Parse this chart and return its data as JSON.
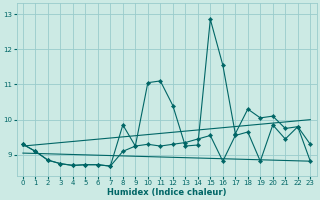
{
  "xlabel": "Humidex (Indice chaleur)",
  "background_color": "#cceae4",
  "grid_color": "#99cccc",
  "line_color": "#006666",
  "xlim": [
    -0.5,
    23.5
  ],
  "ylim": [
    8.4,
    13.3
  ],
  "yticks": [
    9,
    10,
    11,
    12,
    13
  ],
  "xticks": [
    0,
    1,
    2,
    3,
    4,
    5,
    6,
    7,
    8,
    9,
    10,
    11,
    12,
    13,
    14,
    15,
    16,
    17,
    18,
    19,
    20,
    21,
    22,
    23
  ],
  "series": {
    "volatile": {
      "x": [
        0,
        1,
        2,
        3,
        4,
        5,
        6,
        7,
        8,
        9,
        10,
        11,
        12,
        13,
        14,
        15,
        16,
        17,
        18,
        19,
        20,
        21,
        22,
        23
      ],
      "y": [
        9.3,
        9.1,
        8.85,
        8.75,
        8.7,
        8.72,
        8.72,
        8.68,
        9.85,
        9.25,
        11.05,
        11.1,
        10.4,
        9.25,
        9.28,
        12.85,
        11.55,
        9.6,
        10.3,
        10.05,
        10.1,
        9.75,
        9.8,
        9.3
      ]
    },
    "base": {
      "x": [
        0,
        1,
        2,
        3,
        4,
        5,
        6,
        7,
        8,
        9,
        10,
        11,
        12,
        13,
        14,
        15,
        16,
        17,
        18,
        19,
        20,
        21,
        22,
        23
      ],
      "y": [
        9.3,
        9.1,
        8.85,
        8.75,
        8.7,
        8.72,
        8.72,
        8.68,
        9.1,
        9.25,
        9.3,
        9.25,
        9.3,
        9.35,
        9.45,
        9.55,
        8.82,
        9.55,
        9.65,
        8.82,
        9.85,
        9.45,
        9.8,
        8.82
      ]
    },
    "trend_up": {
      "x": [
        0,
        23
      ],
      "y": [
        9.25,
        10.0
      ]
    },
    "trend_flat": {
      "x": [
        0,
        23
      ],
      "y": [
        9.05,
        8.82
      ]
    }
  }
}
